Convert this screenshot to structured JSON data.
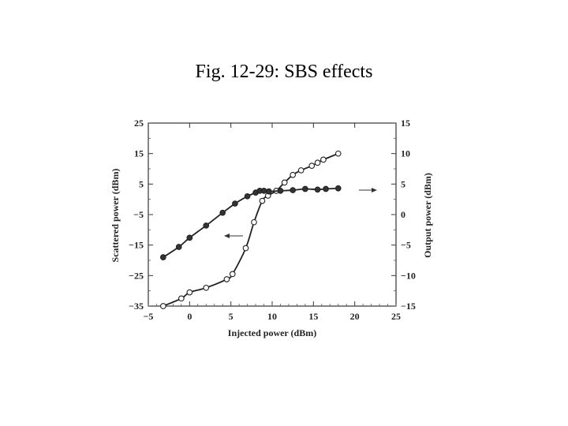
{
  "title": "Fig. 12-29: SBS effects",
  "chart_data": {
    "type": "line",
    "xlabel": "Injected power (dBm)",
    "ylabel_left": "Scattered power (dBm)",
    "ylabel_right": "Output power (dBm)",
    "xlim": [
      -5,
      25
    ],
    "ylim_left": [
      -35,
      25
    ],
    "ylim_right": [
      -15,
      15
    ],
    "x_ticks": [
      "−5",
      "0",
      "5",
      "10",
      "15",
      "20",
      "25"
    ],
    "y_ticks_left": [
      "25",
      "15",
      "5",
      "−5",
      "−15",
      "−25",
      "−35"
    ],
    "y_ticks_right": [
      "15",
      "10",
      "5",
      "0",
      "−5",
      "−10",
      "−15"
    ],
    "grid": false,
    "series": [
      {
        "axis": "left",
        "marker": "open-circle",
        "x": [
          -3.2,
          -1.0,
          0.0,
          2.0,
          4.5,
          5.2,
          6.8,
          7.8,
          8.8,
          9.5,
          10.5,
          11.5,
          12.5,
          13.5,
          14.8,
          15.5,
          16.2,
          18.0
        ],
        "y": [
          -35,
          -32.5,
          -30.5,
          -29,
          -26.2,
          -24.5,
          -16,
          -7.5,
          -0.5,
          1.2,
          2.8,
          5.5,
          8.0,
          9.5,
          11.0,
          12.0,
          13.0,
          15.0
        ]
      },
      {
        "axis": "right",
        "marker": "filled-circle",
        "x": [
          -3.2,
          -1.3,
          0.0,
          2.0,
          4.0,
          5.5,
          7.0,
          8.0,
          8.5,
          9.0,
          9.6,
          11.0,
          12.5,
          14.0,
          15.5,
          16.5,
          18.0
        ],
        "y": [
          -7.0,
          -5.3,
          -3.8,
          -1.8,
          0.3,
          1.8,
          3.0,
          3.6,
          3.9,
          3.9,
          3.8,
          3.9,
          4.0,
          4.2,
          4.1,
          4.2,
          4.3
        ]
      }
    ]
  }
}
